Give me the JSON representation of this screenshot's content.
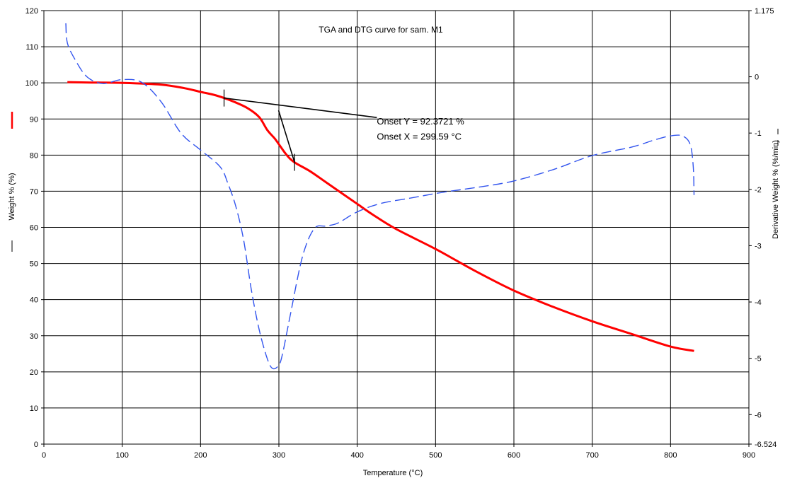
{
  "chart_data": {
    "type": "line",
    "title": "TGA and DTG curve for sam. M1",
    "xlabel": "Temperature (°C)",
    "ylabel": "Weight % (%)",
    "y2label": "Derivative Weight % (%/min)",
    "xlim": [
      0,
      900
    ],
    "ylim": [
      0,
      120
    ],
    "y2lim": [
      -6.524,
      1.175
    ],
    "xticks": [
      0,
      100,
      200,
      300,
      400,
      500,
      600,
      700,
      800,
      900
    ],
    "yticks": [
      0,
      10,
      20,
      30,
      40,
      50,
      60,
      70,
      80,
      90,
      100,
      110,
      120
    ],
    "y2ticks": [
      1.175,
      0,
      -1,
      -2,
      -3,
      -4,
      -5,
      -6,
      -6.524
    ],
    "grid": true,
    "colors": {
      "weight": "#ff0000",
      "derivative": "#3355ee",
      "onset": "#000000",
      "grid": "#000000"
    },
    "series": [
      {
        "name": "Weight %",
        "axis": "left",
        "style": "solid",
        "x": [
          30,
          60,
          100,
          150,
          180,
          200,
          220,
          240,
          260,
          275,
          285,
          295,
          300,
          310,
          320,
          340,
          360,
          380,
          400,
          420,
          450,
          500,
          550,
          600,
          650,
          700,
          750,
          800,
          830
        ],
        "y": [
          100.2,
          100.1,
          100.0,
          99.5,
          98.5,
          97.5,
          96.5,
          95.0,
          93.0,
          90.5,
          87.0,
          84.5,
          83.0,
          80.0,
          78.0,
          75.5,
          72.5,
          69.5,
          66.5,
          63.5,
          59.5,
          54.0,
          48.0,
          42.5,
          38.0,
          34.0,
          30.5,
          27.0,
          25.8
        ]
      },
      {
        "name": "Derivative Weight %",
        "axis": "right",
        "style": "dashed",
        "x": [
          28,
          30,
          40,
          55,
          75,
          100,
          125,
          150,
          175,
          200,
          225,
          235,
          245,
          255,
          265,
          275,
          285,
          292,
          300,
          305,
          315,
          330,
          345,
          360,
          375,
          400,
          430,
          470,
          510,
          560,
          600,
          650,
          700,
          750,
          780,
          800,
          815,
          825,
          829,
          830
        ],
        "y": [
          0.95,
          0.6,
          0.3,
          0.0,
          -0.12,
          -0.05,
          -0.1,
          -0.45,
          -1.0,
          -1.3,
          -1.6,
          -1.9,
          -2.3,
          -2.9,
          -3.8,
          -4.5,
          -5.0,
          -5.18,
          -5.12,
          -4.9,
          -4.2,
          -3.2,
          -2.7,
          -2.65,
          -2.6,
          -2.4,
          -2.25,
          -2.15,
          -2.05,
          -1.95,
          -1.85,
          -1.65,
          -1.4,
          -1.25,
          -1.12,
          -1.05,
          -1.05,
          -1.2,
          -1.6,
          -2.1
        ]
      }
    ],
    "annotations": [
      {
        "text": "Onset Y = 92.3721 %",
        "x": 425,
        "y": 88.5
      },
      {
        "text": "Onset X = 299.59 °C",
        "x": 425,
        "y": 84.3
      }
    ],
    "onset": {
      "x": 299.59,
      "y": 92.3721,
      "baseline": {
        "x": [
          230,
          425
        ],
        "y": [
          95.8,
          90.4
        ]
      },
      "tangent": {
        "x": [
          299.59,
          320
        ],
        "y": [
          92.3721,
          78.0
        ]
      },
      "markers": [
        {
          "x": 230,
          "y": 95.8
        },
        {
          "x": 320,
          "y": 78.0
        }
      ]
    }
  }
}
